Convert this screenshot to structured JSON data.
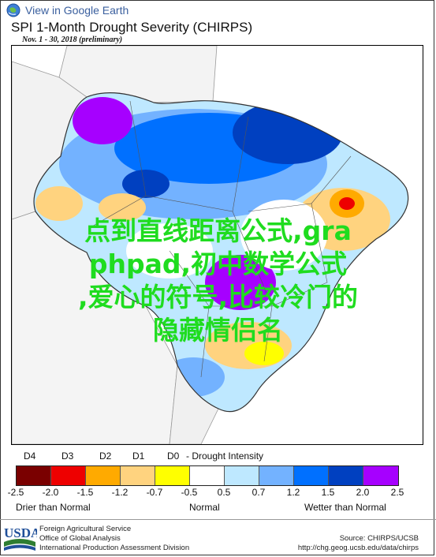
{
  "header": {
    "google_earth_link": "View in Google Earth",
    "title": "SPI 1-Month Drought Severity (CHIRPS)",
    "subtitle": "Nov. 1 - 30, 2018 (preliminary)"
  },
  "overlay_lines": [
    "点到直线距离公式,gra",
    "phpad,初中数学公式",
    ",爱心的符号,比较冷门的",
    "隐藏情侣名"
  ],
  "legend": {
    "drought_classes": [
      "D4",
      "D3",
      "D2",
      "D1",
      "D0"
    ],
    "drought_caption": "- Drought Intensity",
    "colors": [
      "#7a0000",
      "#ee0000",
      "#ffaa00",
      "#ffd37f",
      "#ffff00",
      "#ffffff",
      "#bee8ff",
      "#73b2ff",
      "#0070ff",
      "#0040c0",
      "#a600ff"
    ],
    "ticks": [
      "-2.5",
      "-2.0",
      "-1.5",
      "-1.2",
      "-0.7",
      "-0.5",
      "0.5",
      "0.7",
      "1.2",
      "1.5",
      "2.0",
      "2.5"
    ],
    "drier_label": "Drier than Normal",
    "normal_label": "Normal",
    "wetter_label": "Wetter than Normal"
  },
  "footer": {
    "usda_text": "USDA",
    "agency_lines": [
      "Foreign Agricultural Service",
      "Office of Global Analysis",
      "International Production Assessment Division"
    ],
    "source_line": "Source: CHIRPS/UCSB",
    "source_url": "http://chg.geog.ucsb.edu/data/chirps"
  }
}
